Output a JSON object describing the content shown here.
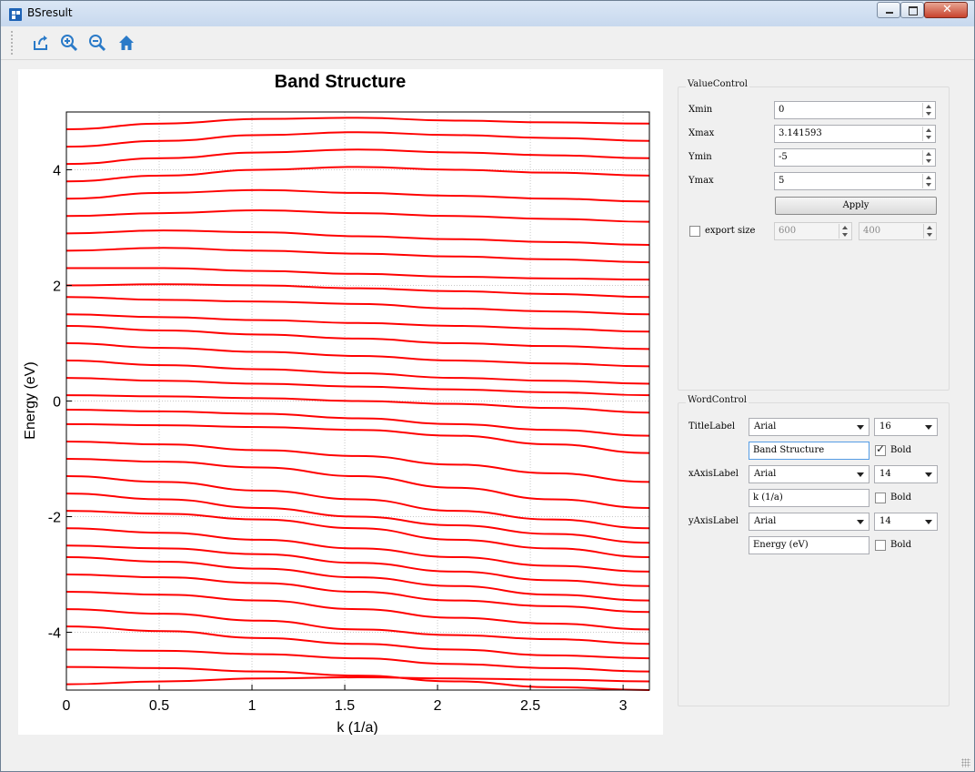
{
  "window": {
    "title": "BSresult",
    "close_glyph": "✕"
  },
  "toolbar": {
    "icons": [
      "export-icon",
      "zoom-in-icon",
      "zoom-out-icon",
      "home-icon"
    ],
    "accent": "#2a7ac8"
  },
  "chart_data": {
    "type": "line",
    "title": "Band Structure",
    "xlabel": "k (1/a)",
    "ylabel": "Energy (eV)",
    "xlim": [
      0,
      3.141593
    ],
    "ylim": [
      -5,
      5
    ],
    "xticks": [
      "0",
      "0.5",
      "1",
      "1.5",
      "2",
      "2.5",
      "3"
    ],
    "yticks": [
      "-4",
      "-2",
      "0",
      "2",
      "4"
    ],
    "grid": true,
    "line_color": "#ff0000",
    "x": [
      0,
      0.5236,
      1.0472,
      1.5708,
      2.0944,
      2.618,
      3.1416
    ],
    "series": [
      {
        "values": [
          -4.9,
          -4.85,
          -4.8,
          -4.78,
          -4.8,
          -4.82,
          -4.85
        ]
      },
      {
        "values": [
          -4.6,
          -4.62,
          -4.68,
          -4.75,
          -4.85,
          -4.95,
          -5.0
        ]
      },
      {
        "values": [
          -4.3,
          -4.32,
          -4.38,
          -4.45,
          -4.55,
          -4.62,
          -4.68
        ]
      },
      {
        "values": [
          -3.9,
          -3.98,
          -4.1,
          -4.2,
          -4.3,
          -4.4,
          -4.45
        ]
      },
      {
        "values": [
          -3.6,
          -3.68,
          -3.8,
          -3.95,
          -4.05,
          -4.12,
          -4.2
        ]
      },
      {
        "values": [
          -3.3,
          -3.35,
          -3.45,
          -3.6,
          -3.75,
          -3.85,
          -3.95
        ]
      },
      {
        "values": [
          -3.0,
          -3.05,
          -3.15,
          -3.3,
          -3.45,
          -3.55,
          -3.65
        ]
      },
      {
        "values": [
          -2.7,
          -2.78,
          -2.9,
          -3.05,
          -3.2,
          -3.35,
          -3.45
        ]
      },
      {
        "values": [
          -2.5,
          -2.55,
          -2.65,
          -2.8,
          -2.95,
          -3.1,
          -3.2
        ]
      },
      {
        "values": [
          -2.2,
          -2.28,
          -2.4,
          -2.55,
          -2.7,
          -2.85,
          -2.95
        ]
      },
      {
        "values": [
          -1.9,
          -1.95,
          -2.05,
          -2.2,
          -2.4,
          -2.55,
          -2.7
        ]
      },
      {
        "values": [
          -1.6,
          -1.7,
          -1.85,
          -2.0,
          -2.15,
          -2.3,
          -2.45
        ]
      },
      {
        "values": [
          -1.3,
          -1.4,
          -1.55,
          -1.7,
          -1.9,
          -2.05,
          -2.2
        ]
      },
      {
        "values": [
          -1.0,
          -1.05,
          -1.15,
          -1.3,
          -1.5,
          -1.7,
          -1.85
        ]
      },
      {
        "values": [
          -0.7,
          -0.75,
          -0.85,
          -0.95,
          -1.1,
          -1.25,
          -1.4
        ]
      },
      {
        "values": [
          -0.4,
          -0.42,
          -0.45,
          -0.5,
          -0.6,
          -0.75,
          -0.9
        ]
      },
      {
        "values": [
          -0.15,
          -0.18,
          -0.22,
          -0.3,
          -0.4,
          -0.5,
          -0.6
        ]
      },
      {
        "values": [
          0.1,
          0.08,
          0.05,
          0.0,
          -0.05,
          -0.12,
          -0.2
        ]
      },
      {
        "values": [
          0.4,
          0.35,
          0.3,
          0.25,
          0.2,
          0.15,
          0.1
        ]
      },
      {
        "values": [
          0.7,
          0.62,
          0.55,
          0.48,
          0.4,
          0.35,
          0.3
        ]
      },
      {
        "values": [
          1.0,
          0.92,
          0.85,
          0.78,
          0.7,
          0.65,
          0.6
        ]
      },
      {
        "values": [
          1.3,
          1.22,
          1.15,
          1.08,
          1.0,
          0.95,
          0.9
        ]
      },
      {
        "values": [
          1.5,
          1.45,
          1.4,
          1.35,
          1.3,
          1.25,
          1.2
        ]
      },
      {
        "values": [
          1.8,
          1.75,
          1.72,
          1.68,
          1.6,
          1.55,
          1.5
        ]
      },
      {
        "values": [
          2.0,
          2.02,
          2.0,
          1.95,
          1.9,
          1.85,
          1.8
        ]
      },
      {
        "values": [
          2.3,
          2.3,
          2.25,
          2.2,
          2.15,
          2.12,
          2.1
        ]
      },
      {
        "values": [
          2.6,
          2.65,
          2.6,
          2.55,
          2.5,
          2.45,
          2.4
        ]
      },
      {
        "values": [
          2.9,
          2.95,
          2.92,
          2.85,
          2.8,
          2.75,
          2.7
        ]
      },
      {
        "values": [
          3.2,
          3.25,
          3.3,
          3.25,
          3.2,
          3.15,
          3.1
        ]
      },
      {
        "values": [
          3.5,
          3.6,
          3.65,
          3.6,
          3.55,
          3.5,
          3.45
        ]
      },
      {
        "values": [
          3.8,
          3.9,
          4.0,
          4.05,
          4.0,
          3.95,
          3.9
        ]
      },
      {
        "values": [
          4.1,
          4.2,
          4.3,
          4.35,
          4.3,
          4.25,
          4.2
        ]
      },
      {
        "values": [
          4.4,
          4.5,
          4.6,
          4.65,
          4.6,
          4.55,
          4.5
        ]
      },
      {
        "values": [
          4.7,
          4.8,
          4.88,
          4.9,
          4.85,
          4.82,
          4.8
        ]
      }
    ]
  },
  "value_control": {
    "title": "ValueControl",
    "fields": [
      {
        "label": "Xmin",
        "value": "0"
      },
      {
        "label": "Xmax",
        "value": "3.141593"
      },
      {
        "label": "Ymin",
        "value": "-5"
      },
      {
        "label": "Ymax",
        "value": "5"
      }
    ],
    "apply_label": "Apply",
    "export_label": "export size",
    "export_width": "600",
    "export_height": "400"
  },
  "word_control": {
    "title": "WordControl",
    "rows": [
      {
        "label": "TitleLabel",
        "font": "Arial",
        "size": "16",
        "text": "Band Structure",
        "bold_label": "Bold",
        "bold": true
      },
      {
        "label": "xAxisLabel",
        "font": "Arial",
        "size": "14",
        "text": "k (1/a)",
        "bold_label": "Bold",
        "bold": false
      },
      {
        "label": "yAxisLabel",
        "font": "Arial",
        "size": "14",
        "text": "Energy (eV)",
        "bold_label": "Bold",
        "bold": false
      }
    ]
  }
}
